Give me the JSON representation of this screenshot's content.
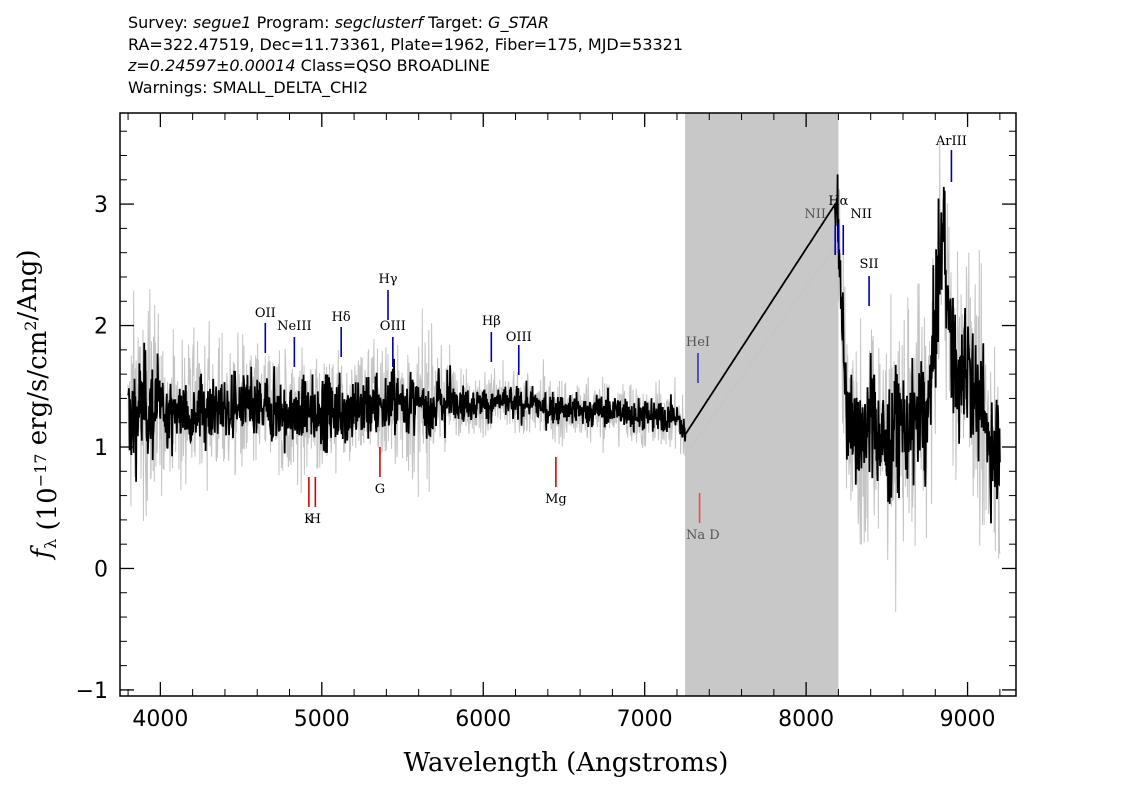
{
  "header": {
    "survey_label": "Survey:",
    "survey_value": "segue1",
    "program_label": "Program:",
    "program_value": "segclusterf",
    "target_label": "Target:",
    "target_value": "G_STAR",
    "line2": "RA=322.47519, Dec=11.73361, Plate=1962, Fiber=175, MJD=53321",
    "redshift": "z=0.24597±0.00014",
    "class_text": "Class=QSO BROADLINE",
    "warnings": "Warnings: SMALL_DELTA_CHI2"
  },
  "chart_data": {
    "type": "line",
    "xlabel": "Wavelength (Angstroms)",
    "ylabel": "f_λ (10^-17 erg/s/cm^2/Ang)",
    "xlim": [
      3750,
      9300
    ],
    "ylim": [
      -1.05,
      3.75
    ],
    "xticks": [
      4000,
      5000,
      6000,
      7000,
      8000,
      9000
    ],
    "yticks": [
      -1,
      0,
      1,
      2,
      3
    ],
    "masked_region": [
      7250,
      8200
    ],
    "colors": {
      "flux": "#000000",
      "error_band": "#c4c4c4",
      "mask": "#c8c8c8",
      "emission": "#0000b0",
      "absorption": "#e00000",
      "faint_label": "#555555"
    },
    "series": [
      {
        "role": "smoothed-flux",
        "x": [
          3800,
          3850,
          3900,
          4000,
          4100,
          4200,
          4300,
          4400,
          4500,
          4600,
          4700,
          4800,
          4900,
          5000,
          5100,
          5200,
          5300,
          5400,
          5500,
          5600,
          5700,
          5800,
          5900,
          6000,
          6100,
          6200,
          6300,
          6400,
          6500,
          6600,
          6700,
          6800,
          6900,
          7000,
          7100,
          7200,
          7250,
          8180,
          8200,
          8250,
          8300,
          8350,
          8400,
          8450,
          8500,
          8550,
          8600,
          8650,
          8700,
          8750,
          8800,
          8850,
          8900,
          8950,
          9000,
          9050,
          9100,
          9150,
          9200
        ],
        "y": [
          1.2,
          1.3,
          1.35,
          1.3,
          1.28,
          1.3,
          1.32,
          1.3,
          1.35,
          1.3,
          1.32,
          1.25,
          1.28,
          1.3,
          1.3,
          1.32,
          1.35,
          1.35,
          1.38,
          1.32,
          1.35,
          1.4,
          1.35,
          1.35,
          1.38,
          1.35,
          1.35,
          1.32,
          1.3,
          1.3,
          1.3,
          1.3,
          1.28,
          1.25,
          1.25,
          1.25,
          1.1,
          3.0,
          2.8,
          1.3,
          1.2,
          0.9,
          1.3,
          1.1,
          1.0,
          1.1,
          1.2,
          1.1,
          1.3,
          1.2,
          2.0,
          2.8,
          1.8,
          1.5,
          1.8,
          1.4,
          1.2,
          1.0,
          1.0
        ]
      }
    ],
    "emission_lines": [
      {
        "label": "OII",
        "x": 4650
      },
      {
        "label": "NeIII",
        "x": 4830
      },
      {
        "label": "Hδ",
        "x": 5120
      },
      {
        "label": "Hγ",
        "x": 5410
      },
      {
        "label": "OIII",
        "x": 5440
      },
      {
        "label": "Hβ",
        "x": 6050
      },
      {
        "label": "OIII",
        "x": 6220
      },
      {
        "label": "HeI",
        "x": 7330
      },
      {
        "label": "NII",
        "x": 8180
      },
      {
        "label": "Hα",
        "x": 8200
      },
      {
        "label": "NII",
        "x": 8230
      },
      {
        "label": "SII",
        "x": 8390
      },
      {
        "label": "ArIII",
        "x": 8900
      }
    ],
    "absorption_lines": [
      {
        "label": "K",
        "x": 4920
      },
      {
        "label": "H",
        "x": 4960
      },
      {
        "label": "G",
        "x": 5360
      },
      {
        "label": "Mg",
        "x": 6450
      },
      {
        "label": "Na",
        "x": 7340
      },
      {
        "label": "D",
        "x": 7370
      }
    ]
  }
}
